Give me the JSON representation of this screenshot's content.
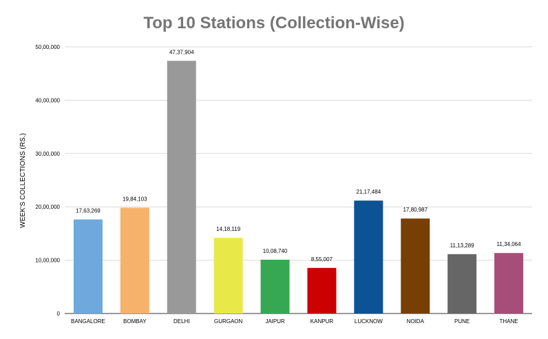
{
  "chart_data": {
    "type": "bar",
    "title": "Top 10 Stations (Collection-Wise)",
    "xlabel": "",
    "ylabel": "WEEK'S COLLECTIONS (RS.)",
    "ylim": [
      0,
      5000000
    ],
    "grid": true,
    "legend": "none",
    "y_ticks": [
      {
        "value": 0,
        "label": "0"
      },
      {
        "value": 1000000,
        "label": "10,00,000"
      },
      {
        "value": 2000000,
        "label": "20,00,000"
      },
      {
        "value": 3000000,
        "label": "30,00,000"
      },
      {
        "value": 4000000,
        "label": "40,00,000"
      },
      {
        "value": 5000000,
        "label": "50,00,000"
      }
    ],
    "categories": [
      "BANGALORE",
      "BOMBAY",
      "DELHI",
      "GURGAON",
      "JAIPUR",
      "KANPUR",
      "LUCKNOW",
      "NOIDA",
      "PUNE",
      "THANE"
    ],
    "values": [
      1763269,
      1984103,
      4737904,
      1418119,
      1008740,
      855007,
      2117484,
      1780987,
      1113289,
      1134064
    ],
    "data_labels": [
      "17,63,269",
      "19,84,103",
      "47,37,904",
      "14,18,119",
      "10,08,740",
      "8,55,007",
      "21,17,484",
      "17,80,987",
      "11,13,289",
      "11,34,064"
    ],
    "colors": [
      "#6fa8dc",
      "#f6b26b",
      "#999999",
      "#e9e849",
      "#36a853",
      "#cc0000",
      "#0b5394",
      "#783f04",
      "#666666",
      "#a64d79"
    ]
  }
}
